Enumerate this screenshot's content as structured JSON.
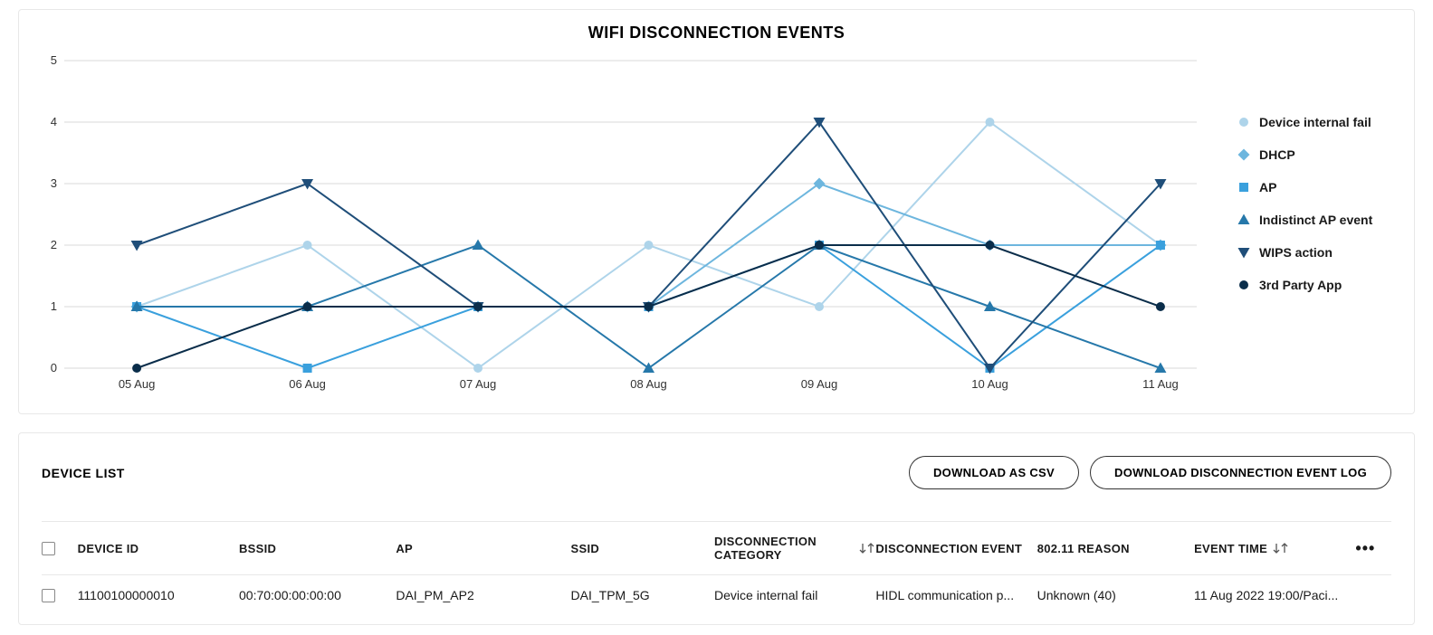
{
  "chart": {
    "title": "WIFI DISCONNECTION EVENTS",
    "type": "line",
    "xlabels": [
      "05 Aug",
      "06 Aug",
      "07 Aug",
      "08 Aug",
      "09 Aug",
      "10 Aug",
      "11 Aug"
    ],
    "ylim": [
      0,
      5
    ],
    "ytick_step": 1,
    "yticks": [
      0,
      1,
      2,
      3,
      4,
      5
    ],
    "grid_color": "#d9d9d9",
    "background_color": "#ffffff",
    "title_fontsize": 18,
    "label_fontsize": 13,
    "line_width": 2,
    "series": [
      {
        "name": "Device internal fail",
        "color": "#aed4ea",
        "marker": "circle",
        "values": [
          1,
          2,
          0,
          2,
          1,
          4,
          2
        ]
      },
      {
        "name": "DHCP",
        "color": "#6db6de",
        "marker": "diamond",
        "values": [
          1,
          1,
          1,
          1,
          3,
          2,
          2
        ]
      },
      {
        "name": "AP",
        "color": "#3aa0dd",
        "marker": "square",
        "values": [
          1,
          0,
          1,
          1,
          2,
          0,
          2
        ]
      },
      {
        "name": "Indistinct AP event",
        "color": "#2678aa",
        "marker": "triangle-up",
        "values": [
          1,
          1,
          2,
          0,
          2,
          1,
          0
        ]
      },
      {
        "name": "WIPS action",
        "color": "#1f4e79",
        "marker": "triangle-down",
        "values": [
          2,
          3,
          1,
          1,
          4,
          0,
          3
        ]
      },
      {
        "name": "3rd Party App",
        "color": "#0a2d4a",
        "marker": "circle",
        "values": [
          0,
          1,
          1,
          1,
          2,
          2,
          1
        ]
      }
    ]
  },
  "table": {
    "title": "DEVICE LIST",
    "buttons": {
      "download_csv": "DOWNLOAD AS CSV",
      "download_log": "DOWNLOAD DISCONNECTION EVENT LOG"
    },
    "columns": {
      "device_id": "DEVICE ID",
      "bssid": "BSSID",
      "ap": "AP",
      "ssid": "SSID",
      "category": "DISCONNECTION CATEGORY",
      "event": "DISCONNECTION EVENT",
      "reason": "802.11 REASON",
      "time": "EVENT TIME"
    },
    "rows": [
      {
        "device_id": "11100100000010",
        "bssid": "00:70:00:00:00:00",
        "ap": "DAI_PM_AP2",
        "ssid": "DAI_TPM_5G",
        "category": "Device internal fail",
        "event": "HIDL communication p...",
        "reason": "Unknown (40)",
        "time": "11 Aug 2022 19:00/Paci..."
      }
    ]
  }
}
